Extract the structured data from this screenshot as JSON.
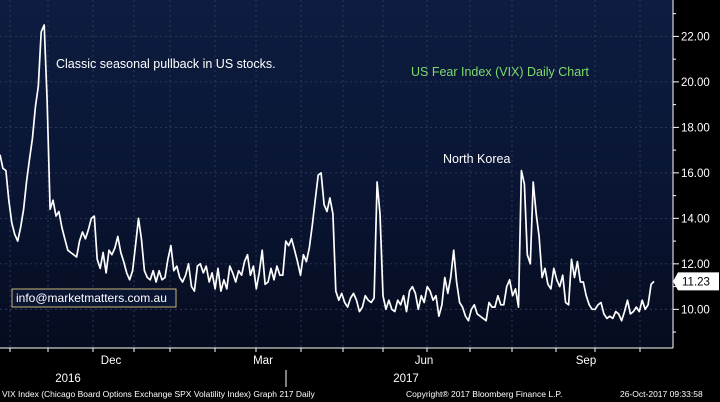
{
  "chart_data": {
    "type": "line",
    "title": "US Fear Index (VIX) Daily Chart",
    "annotations": [
      {
        "text": "Classic seasonal pullback in US stocks."
      },
      {
        "text": "North Korea"
      }
    ],
    "website": "info@marketmatters.com.au",
    "ylim": [
      8.3,
      23.6
    ],
    "yticks": [
      "10.00",
      "12.00",
      "14.00",
      "16.00",
      "18.00",
      "20.00",
      "22.00"
    ],
    "grid": true,
    "x_month_labels": [
      "Dec",
      "Mar",
      "Jun",
      "Sep"
    ],
    "x_year_labels": [
      "2016",
      "2017"
    ],
    "last_value_label": "11.23",
    "series": [
      {
        "values": [
          16.8,
          16.2,
          16.1,
          14.8,
          13.8,
          13.3,
          13.0,
          13.6,
          14.4,
          15.6,
          16.6,
          17.5,
          18.9,
          19.8,
          22.2,
          22.5,
          19.2,
          14.4,
          14.8,
          14.1,
          14.3,
          13.6,
          13.1,
          12.6,
          12.5,
          12.4,
          12.3,
          13.0,
          13.4,
          13.1,
          13.5,
          14.0,
          14.1,
          12.2,
          11.8,
          12.5,
          11.6,
          12.6,
          12.4,
          12.7,
          13.2,
          12.5,
          12.1,
          11.6,
          11.3,
          11.7,
          12.8,
          14.0,
          13.1,
          11.7,
          11.4,
          11.3,
          11.7,
          11.2,
          11.7,
          11.3,
          11.4,
          12.2,
          12.8,
          11.7,
          11.9,
          11.4,
          11.2,
          11.5,
          12.0,
          11.0,
          10.8,
          11.9,
          12.0,
          11.6,
          11.9,
          11.2,
          11.6,
          10.9,
          11.8,
          10.8,
          11.3,
          10.9,
          11.9,
          11.6,
          11.2,
          11.7,
          11.5,
          12.1,
          12.4,
          11.5,
          11.9,
          10.9,
          11.6,
          12.6,
          11.1,
          11.2,
          11.8,
          11.3,
          11.9,
          11.5,
          11.5,
          13.0,
          12.8,
          13.1,
          12.6,
          12.1,
          11.5,
          12.4,
          12.1,
          12.7,
          13.7,
          14.8,
          15.9,
          16.0,
          14.6,
          14.3,
          14.9,
          14.2,
          10.8,
          10.4,
          10.7,
          10.3,
          10.1,
          10.5,
          10.7,
          10.4,
          9.9,
          10.1,
          10.6,
          10.4,
          10.3,
          10.5,
          15.6,
          14.2,
          10.6,
          10.0,
          10.4,
          10.0,
          9.9,
          10.4,
          10.2,
          10.6,
          9.9,
          10.8,
          11.0,
          10.7,
          10.0,
          10.6,
          10.3,
          11.0,
          10.8,
          10.4,
          10.6,
          9.7,
          10.2,
          11.4,
          10.7,
          11.4,
          12.6,
          11.2,
          10.3,
          10.1,
          9.7,
          9.5,
          10.0,
          10.2,
          9.8,
          9.7,
          9.6,
          9.5,
          10.3,
          10.1,
          10.1,
          10.6,
          10.2,
          10.2,
          11.0,
          11.3,
          10.6,
          10.9,
          10.1,
          16.1,
          15.5,
          12.4,
          12.0,
          15.6,
          14.2,
          13.2,
          11.4,
          11.8,
          11.1,
          10.9,
          11.8,
          11.3,
          11.0,
          11.5,
          10.3,
          10.2,
          12.2,
          11.4,
          12.1,
          11.2,
          11.2,
          10.6,
          10.2,
          10.0,
          10.0,
          10.2,
          10.3,
          9.8,
          9.6,
          9.7,
          9.6,
          9.9,
          9.8,
          9.5,
          9.9,
          10.4,
          9.8,
          9.9,
          10.1,
          9.9,
          10.4,
          10.0,
          10.2,
          11.1,
          11.23
        ]
      }
    ]
  },
  "footer": {
    "left": "VIX Index (Chicago Board Options Exchange SPX Volatility Index) Graph 217  Daily",
    "middle": "Copyright® 2017 Bloomberg Finance L.P.",
    "right": "26-Oct-2017 09:33:58"
  }
}
